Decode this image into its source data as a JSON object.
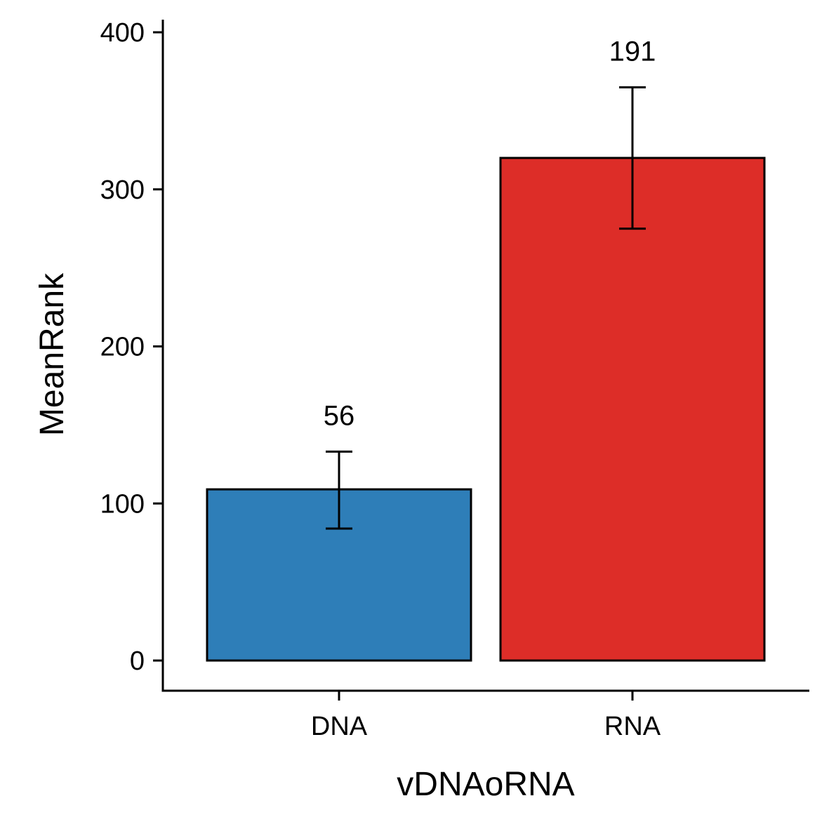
{
  "chart_data": {
    "type": "bar",
    "title": "",
    "xlabel": "vDNAoRNA",
    "ylabel": "MeanRank",
    "categories": [
      "DNA",
      "RNA"
    ],
    "values": [
      109,
      320
    ],
    "error_lower": [
      84,
      275
    ],
    "error_upper": [
      133,
      365
    ],
    "bar_labels": [
      "56",
      "191"
    ],
    "colors": [
      "#2e7eb8",
      "#dd2d28"
    ],
    "ylim": [
      -20,
      410
    ],
    "yticks": [
      0,
      100,
      200,
      300,
      400
    ],
    "grid": false,
    "legend": "none"
  }
}
